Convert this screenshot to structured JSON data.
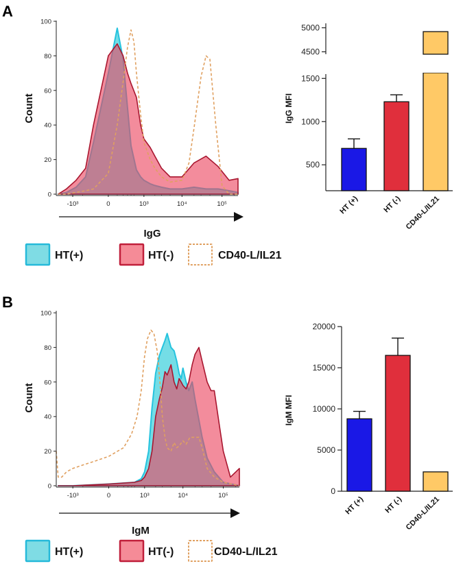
{
  "panels": {
    "a_label": "A",
    "b_label": "B"
  },
  "legend": [
    {
      "label": "HT(+)",
      "fill": "#7fdce4",
      "stroke": "#25b9d9",
      "dashed": false
    },
    {
      "label": "HT(-)",
      "fill": "#f58b97",
      "stroke": "#c01f3a",
      "dashed": false
    },
    {
      "label": "CD40-L/IL21",
      "fill": "#ffffff",
      "stroke": "#e0a060",
      "dashed": true
    }
  ],
  "chart_data": [
    {
      "id": "hist_igg",
      "type": "area",
      "title": "",
      "xlabel": "IgG",
      "ylabel": "Count",
      "ylim": [
        0,
        100
      ],
      "yticks": [
        "0",
        "20",
        "40",
        "60",
        "80",
        "100"
      ],
      "xticks": [
        {
          "label": "-10³",
          "value": -1000
        },
        {
          "label": "0",
          "value": 0
        },
        {
          "label": "10³",
          "value": 1000
        },
        {
          "label": "10⁴",
          "value": 10000
        },
        {
          "label": "10⁵",
          "value": 100000
        }
      ],
      "series": [
        {
          "name": "HT(+)",
          "color": "#25b9d9",
          "x": [
            -2500,
            -1500,
            -800,
            -400,
            -200,
            0,
            100,
            200,
            300,
            400,
            600,
            800,
            1000,
            1500,
            2000,
            3000,
            5000,
            10000,
            20000,
            40000,
            80000,
            150000,
            250000
          ],
          "y": [
            0,
            1,
            4,
            10,
            30,
            70,
            96,
            78,
            50,
            28,
            14,
            10,
            8,
            6,
            5,
            4,
            3,
            3,
            4,
            3,
            3,
            2,
            1
          ]
        },
        {
          "name": "HT(-)",
          "color": "#c01f3a",
          "x": [
            -2500,
            -1500,
            -800,
            -400,
            -200,
            0,
            100,
            200,
            300,
            400,
            600,
            800,
            1000,
            1500,
            2000,
            3000,
            5000,
            10000,
            20000,
            40000,
            80000,
            150000,
            250000
          ],
          "y": [
            0,
            3,
            8,
            15,
            40,
            80,
            87,
            80,
            70,
            64,
            56,
            40,
            32,
            27,
            22,
            15,
            10,
            10,
            18,
            22,
            16,
            8,
            9
          ]
        },
        {
          "name": "CD40-L/IL21",
          "color": "#e0a060",
          "x": [
            -2500,
            -1500,
            -800,
            -400,
            -200,
            0,
            100,
            200,
            300,
            400,
            500,
            600,
            800,
            1000,
            1500,
            2000,
            3000,
            5000,
            10000,
            15000,
            20000,
            30000,
            40000,
            50000,
            70000,
            100000,
            150000,
            250000
          ],
          "y": [
            0,
            0,
            1,
            2,
            3,
            12,
            40,
            65,
            85,
            95,
            88,
            70,
            46,
            30,
            20,
            15,
            10,
            7,
            8,
            18,
            38,
            68,
            80,
            78,
            40,
            5,
            0,
            0
          ]
        }
      ]
    },
    {
      "id": "bar_igg",
      "type": "bar",
      "title": "",
      "xlabel": "",
      "ylabel": "IgG MFI",
      "categories": [
        "HT (+)",
        "HT (-)",
        "CD40-L/IL21"
      ],
      "values": [
        690,
        1230,
        4920
      ],
      "errors": [
        110,
        80,
        null
      ],
      "colors": [
        "#1a18e6",
        "#e02f3c",
        "#ffc966"
      ],
      "axis_break": [
        1550,
        4450
      ],
      "lower_range": [
        200,
        1550
      ],
      "upper_range": [
        4450,
        5050
      ],
      "yticks_lower": [
        "500",
        "1000",
        "1500"
      ],
      "yticks_upper": [
        "4500",
        "5000"
      ]
    },
    {
      "id": "hist_igm",
      "type": "area",
      "title": "",
      "xlabel": "IgM",
      "ylabel": "Count",
      "ylim": [
        0,
        100
      ],
      "yticks": [
        "0",
        "20",
        "40",
        "60",
        "80",
        "100"
      ],
      "xticks": [
        {
          "label": "-10³",
          "value": -1000
        },
        {
          "label": "0",
          "value": 0
        },
        {
          "label": "10³",
          "value": 1000
        },
        {
          "label": "10⁴",
          "value": 10000
        },
        {
          "label": "10⁵",
          "value": 100000
        }
      ],
      "series": [
        {
          "name": "HT(+)",
          "color": "#25b9d9",
          "x": [
            -2500,
            -1000,
            0,
            500,
            800,
            1000,
            1300,
            1600,
            2000,
            2500,
            3000,
            3500,
            4000,
            5000,
            6000,
            7000,
            8000,
            9000,
            10000,
            12000,
            14000,
            17000,
            20000,
            25000,
            30000,
            40000,
            60000,
            100000,
            250000
          ],
          "y": [
            0,
            0,
            1,
            2,
            4,
            8,
            20,
            45,
            65,
            75,
            80,
            84,
            88,
            80,
            78,
            72,
            65,
            62,
            68,
            60,
            55,
            60,
            50,
            38,
            28,
            16,
            8,
            2,
            0
          ]
        },
        {
          "name": "HT(-)",
          "color": "#c01f3a",
          "x": [
            -2500,
            -1000,
            0,
            500,
            800,
            1000,
            1300,
            1600,
            2000,
            2500,
            3000,
            3500,
            4000,
            5000,
            6000,
            7000,
            8000,
            9000,
            10000,
            12000,
            14000,
            17000,
            20000,
            25000,
            30000,
            40000,
            50000,
            60000,
            80000,
            100000,
            150000,
            250000
          ],
          "y": [
            0,
            0,
            1,
            2,
            3,
            5,
            10,
            20,
            40,
            50,
            57,
            66,
            64,
            70,
            60,
            56,
            62,
            60,
            58,
            56,
            60,
            70,
            76,
            80,
            72,
            60,
            55,
            55,
            35,
            20,
            5,
            10
          ]
        },
        {
          "name": "CD40-L/IL21",
          "color": "#e0a060",
          "x": [
            -2800,
            -2500,
            -2000,
            -1500,
            -1000,
            -500,
            -200,
            0,
            200,
            400,
            600,
            800,
            1000,
            1200,
            1500,
            1800,
            2200,
            2600,
            3000,
            3500,
            4000,
            5000,
            6000,
            7000,
            8000,
            10000,
            12000,
            15000,
            20000,
            25000,
            30000,
            40000,
            60000,
            100000,
            250000
          ],
          "y": [
            20,
            5,
            5,
            8,
            10,
            12,
            14,
            17,
            22,
            30,
            40,
            55,
            75,
            85,
            90,
            88,
            78,
            60,
            40,
            28,
            22,
            20,
            25,
            22,
            23,
            26,
            24,
            28,
            28,
            28,
            22,
            10,
            5,
            2,
            0
          ]
        }
      ]
    },
    {
      "id": "bar_igm",
      "type": "bar",
      "title": "",
      "xlabel": "",
      "ylabel": "IgM MFI",
      "categories": [
        "HT (+)",
        "HT (-)",
        "CD40-L/IL21"
      ],
      "values": [
        8800,
        16500,
        2350
      ],
      "errors": [
        900,
        2100,
        null
      ],
      "colors": [
        "#1a18e6",
        "#e02f3c",
        "#ffc966"
      ],
      "ylim": [
        0,
        20000
      ],
      "yticks": [
        "0",
        "5000",
        "10000",
        "15000",
        "20000"
      ]
    }
  ]
}
